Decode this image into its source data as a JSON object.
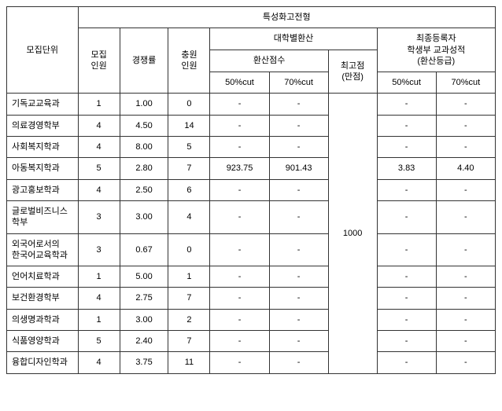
{
  "header": {
    "main_title": "특성화고전형",
    "unit": "모집단위",
    "recruit_count": "모집\n인원",
    "competition": "경쟁률",
    "fill_count": "충원\n인원",
    "univ_conv": "대학별환산",
    "conv_score": "환산점수",
    "max_score_label": "최고점\n(만점)",
    "final_reg": "최종등록자\n학생부 교과성적\n(환산등급)",
    "cut50": "50%cut",
    "cut70": "70%cut"
  },
  "max_score": "1000",
  "rows": [
    {
      "dept": "기독교교육과",
      "recruit": "1",
      "ratio": "1.00",
      "fill": "0",
      "c50": "-",
      "c70": "-",
      "g50": "-",
      "g70": "-"
    },
    {
      "dept": "의료경영학부",
      "recruit": "4",
      "ratio": "4.50",
      "fill": "14",
      "c50": "-",
      "c70": "-",
      "g50": "-",
      "g70": "-"
    },
    {
      "dept": "사회복지학과",
      "recruit": "4",
      "ratio": "8.00",
      "fill": "5",
      "c50": "-",
      "c70": "-",
      "g50": "-",
      "g70": "-"
    },
    {
      "dept": "아동복지학과",
      "recruit": "5",
      "ratio": "2.80",
      "fill": "7",
      "c50": "923.75",
      "c70": "901.43",
      "g50": "3.83",
      "g70": "4.40"
    },
    {
      "dept": "광고홍보학과",
      "recruit": "4",
      "ratio": "2.50",
      "fill": "6",
      "c50": "-",
      "c70": "-",
      "g50": "-",
      "g70": "-"
    },
    {
      "dept": "글로벌비즈니스\n학부",
      "recruit": "3",
      "ratio": "3.00",
      "fill": "4",
      "c50": "-",
      "c70": "-",
      "g50": "-",
      "g70": "-"
    },
    {
      "dept": "외국어로서의\n한국어교육학과",
      "recruit": "3",
      "ratio": "0.67",
      "fill": "0",
      "c50": "-",
      "c70": "-",
      "g50": "-",
      "g70": "-"
    },
    {
      "dept": "언어치료학과",
      "recruit": "1",
      "ratio": "5.00",
      "fill": "1",
      "c50": "-",
      "c70": "-",
      "g50": "-",
      "g70": "-"
    },
    {
      "dept": "보건환경학부",
      "recruit": "4",
      "ratio": "2.75",
      "fill": "7",
      "c50": "-",
      "c70": "-",
      "g50": "-",
      "g70": "-"
    },
    {
      "dept": "의생명과학과",
      "recruit": "1",
      "ratio": "3.00",
      "fill": "2",
      "c50": "-",
      "c70": "-",
      "g50": "-",
      "g70": "-"
    },
    {
      "dept": "식품영양학과",
      "recruit": "5",
      "ratio": "2.40",
      "fill": "7",
      "c50": "-",
      "c70": "-",
      "g50": "-",
      "g70": "-"
    },
    {
      "dept": "융합디자인학과",
      "recruit": "4",
      "ratio": "3.75",
      "fill": "11",
      "c50": "-",
      "c70": "-",
      "g50": "-",
      "g70": "-"
    }
  ]
}
